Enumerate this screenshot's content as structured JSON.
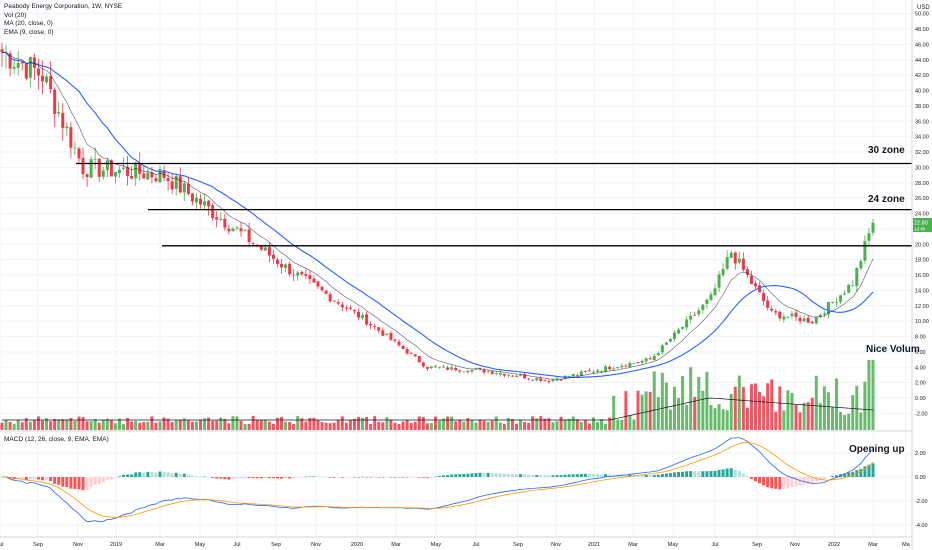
{
  "header": {
    "title": "Peabody Energy Corporation, 1W, NYSE",
    "vol": "Vol (20)",
    "ma": "MA (20, close, 0)",
    "ema": "EMA (9, close, 0)",
    "currency": "USD"
  },
  "macd_pane": {
    "title": "MACD (12, 26, close, 9, EMA, EMA)"
  },
  "last_price": {
    "value": "22.80",
    "countdown": "1d 4h"
  },
  "annotations": [
    {
      "text": "30 zone"
    },
    {
      "text": "24 zone"
    },
    {
      "text": "Nice Volum"
    },
    {
      "text": "Opening up"
    }
  ],
  "colors": {
    "up": "#4caf50",
    "down": "#f23645",
    "ma": "#2962ff",
    "ema": "#131722",
    "macd": "#2962ff",
    "signal": "#ff9800",
    "hist_up_strong": "#26a69a",
    "hist_up_weak": "#b2dfdb",
    "hist_down_strong": "#ff5252",
    "hist_down_weak": "#ffcdd2",
    "hline": "#000000",
    "grid": "#f0f3fa"
  },
  "chart_data": [
    {
      "type": "candlestick",
      "title": "Peabody Energy Corporation, 1W, NYSE",
      "ylabel": "USD",
      "xlabel": "",
      "x_ticks": [
        "Jul",
        "Sep",
        "Nov",
        "2019",
        "Mar",
        "May",
        "Jul",
        "Sep",
        "Nov",
        "2020",
        "Mar",
        "May",
        "Jul",
        "Sep",
        "Nov",
        "2021",
        "Mar",
        "May",
        "Jul",
        "Sep",
        "Nov",
        "2022",
        "Mar",
        "Ma"
      ],
      "y_ticks": [
        -2,
        0,
        2,
        4,
        6,
        8,
        10,
        12,
        14,
        16,
        18,
        20,
        22,
        24,
        26,
        28,
        30,
        32,
        34,
        36,
        38,
        40,
        42,
        44,
        46,
        48,
        50
      ],
      "ylim": [
        -2.4,
        50.2
      ],
      "price_series_keypoints": {
        "x_week_index": [
          0,
          10,
          20,
          40,
          55,
          70,
          90,
          105,
          120,
          135,
          150,
          160,
          175,
          180,
          190,
          200,
          210,
          215
        ],
        "close": [
          45,
          42,
          30,
          29,
          23,
          17,
          10,
          4,
          3.5,
          2.3,
          4,
          5,
          13,
          19,
          11,
          10,
          15,
          22.8
        ]
      },
      "horizontal_levels": [
        {
          "label": "30 zone",
          "value": 30.5
        },
        {
          "label": "24 zone",
          "value": 24.5
        },
        {
          "value": 19.8
        }
      ],
      "last_close": 22.8,
      "grid": true
    },
    {
      "type": "macd",
      "title": "MACD (12, 26, close, 9, EMA, EMA)",
      "y_ticks": [
        2,
        0,
        -2,
        -4
      ],
      "ylim": [
        -4.8,
        3.4
      ],
      "annotation": "Opening up"
    }
  ]
}
